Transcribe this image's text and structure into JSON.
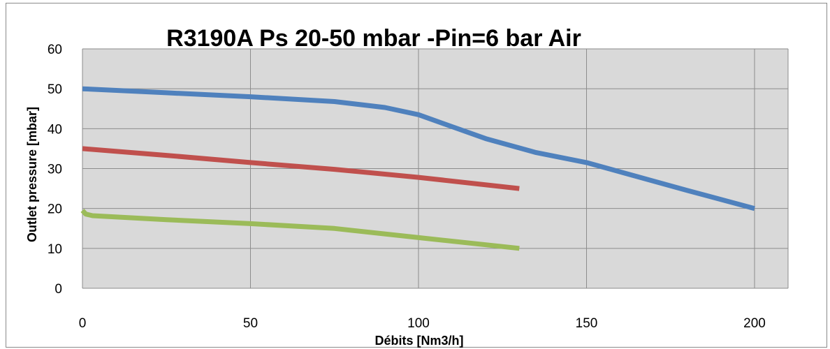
{
  "chart_data": {
    "type": "line",
    "title": "R3190A Ps 20-50 mbar -Pin=6 bar Air",
    "xlabel": "Débits [Nm3/h]",
    "ylabel": "Outlet pressure [mbar]",
    "xlim": [
      0,
      200
    ],
    "ylim": [
      0,
      60
    ],
    "x_ticks": [
      "0",
      "50",
      "100",
      "150",
      "200"
    ],
    "y_ticks": [
      "0",
      "10",
      "20",
      "30",
      "40",
      "50",
      "60"
    ],
    "grid": true,
    "plot_background": "#d9d9d9",
    "series": [
      {
        "color": "#4f81bd",
        "points": [
          [
            0,
            50
          ],
          [
            25,
            49
          ],
          [
            50,
            48
          ],
          [
            75,
            46.8
          ],
          [
            90,
            45.3
          ],
          [
            100,
            43.5
          ],
          [
            110,
            40.5
          ],
          [
            120,
            37.5
          ],
          [
            135,
            34
          ],
          [
            150,
            31.5
          ],
          [
            165,
            28
          ],
          [
            180,
            24.5
          ],
          [
            200,
            20
          ]
        ]
      },
      {
        "color": "#c0504d",
        "points": [
          [
            0,
            35
          ],
          [
            25,
            33.3
          ],
          [
            50,
            31.5
          ],
          [
            75,
            29.8
          ],
          [
            100,
            27.8
          ],
          [
            130,
            25
          ]
        ]
      },
      {
        "color": "#9bbb59",
        "points": [
          [
            0,
            19.5
          ],
          [
            1,
            18.6
          ],
          [
            3,
            18.2
          ],
          [
            25,
            17.2
          ],
          [
            50,
            16.2
          ],
          [
            75,
            15
          ],
          [
            100,
            12.7
          ],
          [
            130,
            10
          ]
        ]
      }
    ]
  }
}
